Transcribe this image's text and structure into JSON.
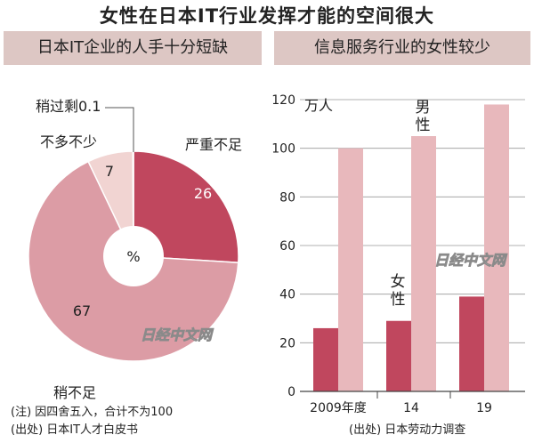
{
  "title": "女性在日本IT行业发挥才能的空间很大",
  "left_panel": {
    "header": "日本IT企业的人手十分短缺",
    "note": "(注) 因四舍五入，合计不为100",
    "source": "(出处) 日本IT人才白皮书"
  },
  "right_panel": {
    "header": "信息服务行业的女性较少",
    "source": "(出处) 日本劳动力调查"
  },
  "watermark": "日经中文网",
  "colors": {
    "severe": "#c0475e",
    "less": "#dc9ca5",
    "bit_less": "#f1d4d2",
    "women": "#c0475e",
    "men": "#e8b8bc",
    "header_bg": "#ddc7c4"
  },
  "chart_data": [
    {
      "type": "pie",
      "center_label": "%",
      "categories": [
        "严重不足",
        "稍不足",
        "不多不少",
        "稍过剩"
      ],
      "values": [
        26,
        67,
        7,
        0.1
      ],
      "labels": [
        "严重不足",
        "稍不足",
        "不多不少",
        "稍过剩0.1"
      ],
      "value_labels": [
        "26",
        "67",
        "7",
        ""
      ]
    },
    {
      "type": "bar",
      "ylabel": "万人",
      "categories": [
        "2009年度",
        "14",
        "19"
      ],
      "series": [
        {
          "name": "女性",
          "values": [
            26,
            29,
            39
          ]
        },
        {
          "name": "男性",
          "values": [
            100,
            105,
            118
          ]
        }
      ],
      "ylim": [
        0,
        120
      ],
      "yticks": [
        0,
        20,
        40,
        60,
        80,
        100,
        120
      ],
      "series_labels": [
        {
          "name": "女性",
          "vertical_text": "女\n性"
        },
        {
          "name": "男性",
          "vertical_text": "男\n性"
        }
      ]
    }
  ]
}
